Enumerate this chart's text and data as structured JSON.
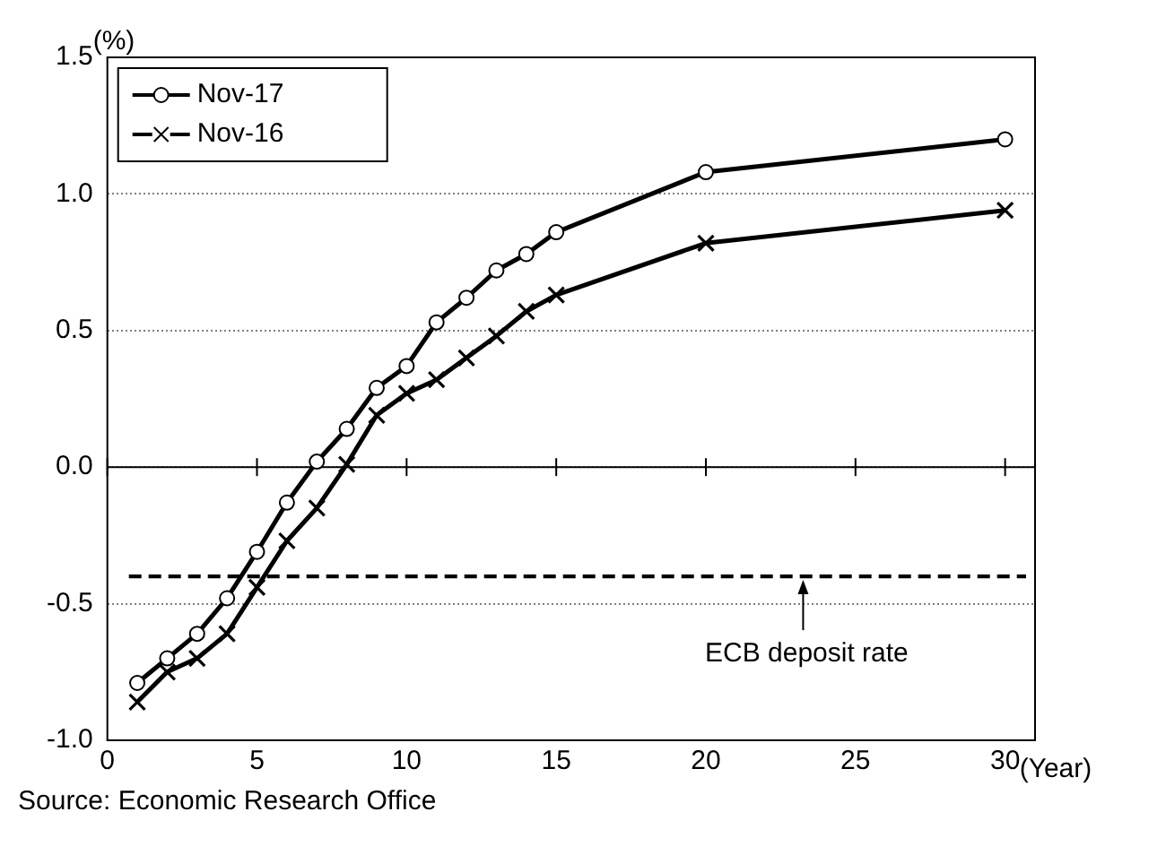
{
  "chart_data": {
    "type": "line",
    "ylabel": "(%)",
    "xlabel": "(Year)",
    "xlim": [
      0,
      31
    ],
    "xticks": [
      0,
      5,
      10,
      15,
      20,
      25,
      30
    ],
    "ylim": [
      -1.0,
      1.5
    ],
    "yticks": [
      {
        "value": -1.0,
        "label": "-1.0"
      },
      {
        "value": -0.5,
        "label": "-0.5"
      },
      {
        "value": 0,
        "label": "0.0"
      },
      {
        "value": 0.5,
        "label": "0.5"
      },
      {
        "value": 1.0,
        "label": "1.0"
      },
      {
        "value": 1.5,
        "label": "1.5"
      }
    ],
    "grid": "y",
    "legend": "top left",
    "series": [
      {
        "name": "Nov-17",
        "color": "#000000",
        "marker": "circle",
        "x": [
          1,
          2,
          3,
          4,
          5,
          6,
          7,
          8,
          9,
          10,
          11,
          12,
          13,
          14,
          15,
          20,
          30
        ],
        "values": [
          -0.79,
          -0.7,
          -0.61,
          -0.48,
          -0.31,
          -0.13,
          0.02,
          0.14,
          0.29,
          0.37,
          0.53,
          0.62,
          0.72,
          0.78,
          0.86,
          1.08,
          1.2
        ]
      },
      {
        "name": "Nov-16",
        "color": "#000000",
        "marker": "cross",
        "x": [
          1,
          2,
          3,
          4,
          5,
          6,
          7,
          8,
          9,
          10,
          11,
          12,
          13,
          14,
          15,
          20,
          30
        ],
        "values": [
          -0.86,
          -0.75,
          -0.7,
          -0.61,
          -0.44,
          -0.27,
          -0.15,
          0.01,
          0.19,
          0.27,
          0.32,
          0.4,
          0.48,
          0.57,
          0.63,
          0.82,
          0.94
        ]
      }
    ],
    "ref_lines": [
      {
        "axis": "y",
        "value": -0.4,
        "label": "ECB deposit rate",
        "line_style": "dashed",
        "color": "#000000"
      }
    ],
    "annotations": [
      "Source: Economic Research Office"
    ]
  }
}
